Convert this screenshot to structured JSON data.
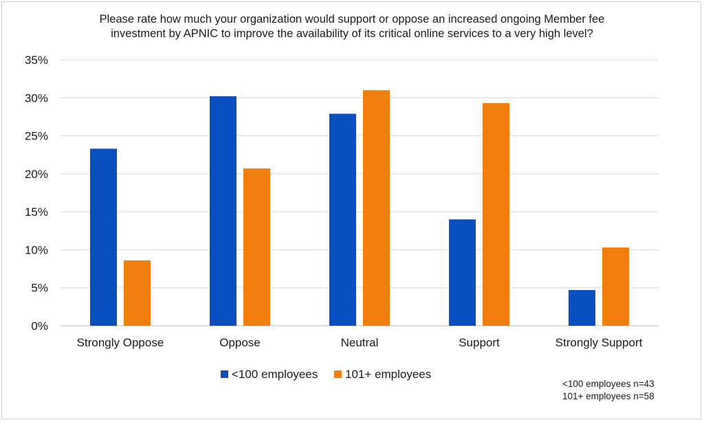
{
  "chart_data": {
    "type": "bar",
    "title_lines": [
      "Please rate how much your organization would support or oppose an increased ongoing Member fee",
      "investment by APNIC to improve the availability of its critical online services to a very high level?"
    ],
    "categories": [
      "Strongly Oppose",
      "Oppose",
      "Neutral",
      "Support",
      "Strongly Support"
    ],
    "series": [
      {
        "name": "<100 employees",
        "color": "#0a4fc0",
        "values": [
          23.3,
          30.2,
          27.9,
          14.0,
          4.7
        ]
      },
      {
        "name": "101+ employees",
        "color": "#f07f0e",
        "values": [
          8.6,
          20.7,
          31.0,
          29.3,
          10.3
        ]
      }
    ],
    "ylim": [
      0,
      35
    ],
    "yticks": [
      0,
      5,
      10,
      15,
      20,
      25,
      30,
      35
    ],
    "ytick_labels": [
      "0%",
      "5%",
      "10%",
      "15%",
      "20%",
      "25%",
      "30%",
      "35%"
    ],
    "grid": true,
    "legend_position": "bottom"
  },
  "notes": [
    "<100 employees n=43",
    "101+ employees n=58"
  ]
}
